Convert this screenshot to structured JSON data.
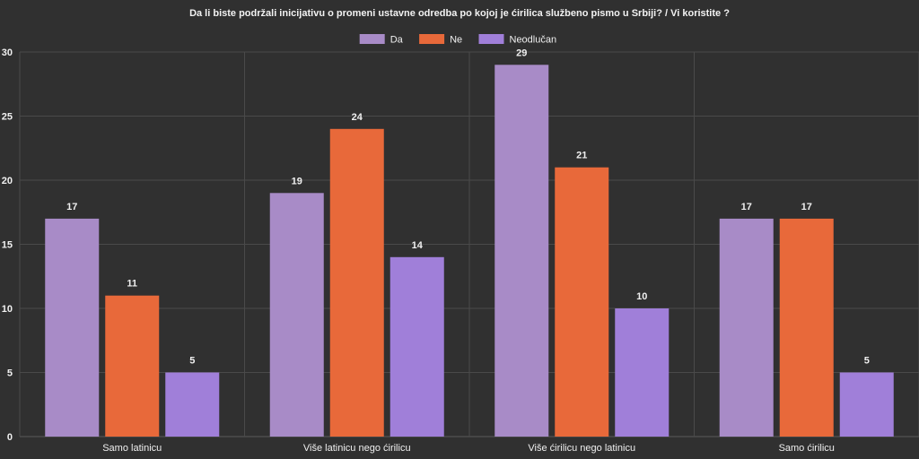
{
  "chart_data": {
    "type": "bar",
    "title": "Da li biste podržali inicijativu o promeni ustavne odredba po kojoj je ćirilica službeno pismo u Srbiji? / Vi koristite ?",
    "categories": [
      "Samo latinicu",
      "Više latinicu nego ćirilicu",
      "Više ćirilicu nego latinicu",
      "Samo ćirilicu"
    ],
    "series": [
      {
        "name": "Da",
        "color": "#a88bc7",
        "values": [
          17,
          19,
          29,
          17
        ]
      },
      {
        "name": "Ne",
        "color": "#e8693a",
        "values": [
          11,
          24,
          21,
          17
        ]
      },
      {
        "name": "Neodlučan",
        "color": "#a07fd9",
        "values": [
          5,
          14,
          10,
          5
        ]
      }
    ],
    "ylim": [
      0,
      30
    ],
    "yticks": [
      0,
      5,
      10,
      15,
      20,
      25,
      30
    ],
    "grid": true,
    "legend": "top-center",
    "data_labels": true
  }
}
